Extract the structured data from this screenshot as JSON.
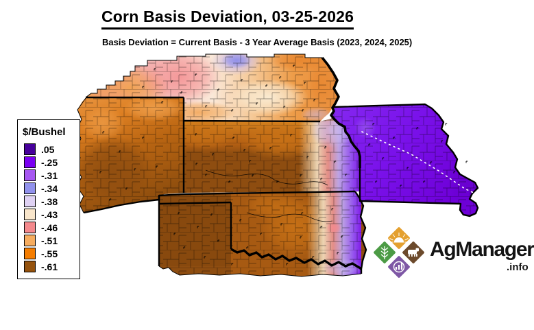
{
  "header": {
    "title": "Corn Basis Deviation, 03-25-2026",
    "subtitle": "Basis Deviation = Current Basis - 3 Year Average Basis (2023, 2024, 2025)"
  },
  "legend": {
    "header": "$/Bushel",
    "items": [
      {
        "label": ".05",
        "color": "#47009B"
      },
      {
        "label": "-.25",
        "color": "#7A00F2"
      },
      {
        "label": "-.31",
        "color": "#A757F2"
      },
      {
        "label": "-.34",
        "color": "#9191EC"
      },
      {
        "label": "-.38",
        "color": "#DFD2F4"
      },
      {
        "label": "-.43",
        "color": "#F9E6CB"
      },
      {
        "label": "-.46",
        "color": "#F4898D"
      },
      {
        "label": "-.51",
        "color": "#F6AC5F"
      },
      {
        "label": "-.55",
        "color": "#F57D00"
      },
      {
        "label": "-.61",
        "color": "#95520D"
      }
    ]
  },
  "logo": {
    "brand": "AgManager",
    "suffix": ".info",
    "diamond_colors": {
      "sun": "#E4A02F",
      "wheat": "#4C9B45",
      "cattle": "#6C4A2C",
      "chart": "#7E57A5"
    }
  }
}
